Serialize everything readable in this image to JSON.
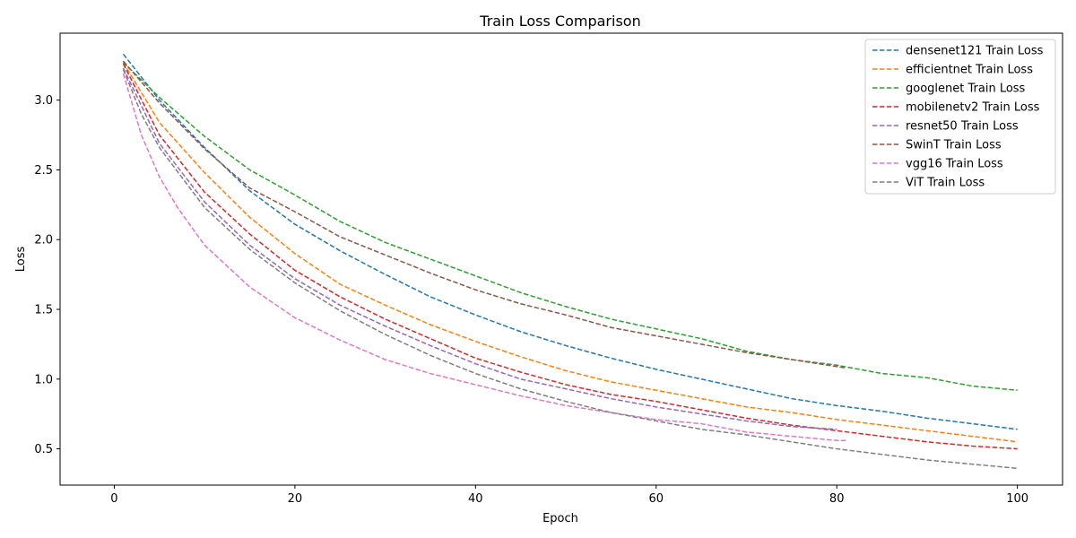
{
  "chart_data": {
    "type": "line",
    "title": "Train Loss Comparison",
    "xlabel": "Epoch",
    "ylabel": "Loss",
    "xlim": [
      -6,
      105
    ],
    "ylim": [
      0.24,
      3.48
    ],
    "xticks": [
      0,
      20,
      40,
      60,
      80,
      100
    ],
    "yticks": [
      0.5,
      1.0,
      1.5,
      2.0,
      2.5,
      3.0
    ],
    "grid": false,
    "legend": "top-right",
    "line_style": "dashed",
    "series": [
      {
        "name": "densenet121 Train Loss",
        "color": "#1f77b4",
        "x": [
          1,
          5,
          10,
          15,
          20,
          25,
          30,
          35,
          40,
          45,
          50,
          55,
          60,
          65,
          70,
          75,
          80,
          85,
          90,
          95,
          100
        ],
        "values": [
          3.33,
          3.0,
          2.66,
          2.35,
          2.11,
          1.92,
          1.75,
          1.59,
          1.46,
          1.34,
          1.24,
          1.15,
          1.07,
          1.0,
          0.93,
          0.86,
          0.81,
          0.77,
          0.72,
          0.68,
          0.64
        ]
      },
      {
        "name": "efficientnet Train Loss",
        "color": "#ff7f0e",
        "x": [
          1,
          5,
          10,
          15,
          20,
          25,
          30,
          35,
          40,
          45,
          50,
          55,
          60,
          65,
          70,
          75,
          80,
          85,
          90,
          95,
          100
        ],
        "values": [
          3.27,
          2.84,
          2.48,
          2.16,
          1.9,
          1.68,
          1.53,
          1.39,
          1.27,
          1.16,
          1.06,
          0.98,
          0.92,
          0.86,
          0.8,
          0.76,
          0.71,
          0.67,
          0.63,
          0.59,
          0.55
        ]
      },
      {
        "name": "googlenet Train Loss",
        "color": "#2ca02c",
        "x": [
          1,
          5,
          10,
          15,
          20,
          25,
          30,
          35,
          40,
          45,
          50,
          55,
          60,
          65,
          70,
          75,
          80,
          85,
          90,
          95,
          100
        ],
        "values": [
          3.27,
          3.02,
          2.74,
          2.5,
          2.32,
          2.13,
          1.98,
          1.86,
          1.74,
          1.62,
          1.52,
          1.43,
          1.36,
          1.29,
          1.2,
          1.14,
          1.1,
          1.04,
          1.01,
          0.95,
          0.92
        ]
      },
      {
        "name": "mobilenetv2 Train Loss",
        "color": "#d62728",
        "x": [
          1,
          5,
          10,
          15,
          20,
          25,
          30,
          35,
          40,
          45,
          50,
          55,
          60,
          65,
          70,
          75,
          80,
          85,
          90,
          95,
          100
        ],
        "values": [
          3.26,
          2.75,
          2.34,
          2.04,
          1.78,
          1.59,
          1.43,
          1.29,
          1.15,
          1.05,
          0.96,
          0.89,
          0.84,
          0.78,
          0.72,
          0.67,
          0.63,
          0.59,
          0.55,
          0.52,
          0.5
        ]
      },
      {
        "name": "resnet50 Train Loss",
        "color": "#9467bd",
        "x": [
          1,
          5,
          10,
          15,
          20,
          25,
          30,
          35,
          40,
          45,
          50,
          55,
          60,
          65,
          70,
          75,
          80
        ],
        "values": [
          3.23,
          2.69,
          2.27,
          1.96,
          1.72,
          1.53,
          1.38,
          1.24,
          1.11,
          1.0,
          0.93,
          0.86,
          0.8,
          0.75,
          0.7,
          0.66,
          0.64
        ]
      },
      {
        "name": "SwinT Train Loss",
        "color": "#8c564b",
        "x": [
          1,
          5,
          10,
          15,
          20,
          25,
          30,
          35,
          40,
          45,
          50,
          55,
          60,
          65,
          70,
          75,
          80,
          81
        ],
        "values": [
          3.28,
          2.98,
          2.65,
          2.37,
          2.2,
          2.02,
          1.89,
          1.76,
          1.64,
          1.54,
          1.46,
          1.37,
          1.31,
          1.25,
          1.19,
          1.14,
          1.09,
          1.08
        ]
      },
      {
        "name": "vgg16 Train Loss",
        "color": "#e377c2",
        "x": [
          1,
          3,
          5,
          7,
          10,
          15,
          20,
          25,
          30,
          35,
          40,
          45,
          50,
          55,
          60,
          65,
          70,
          75,
          80,
          81
        ],
        "values": [
          3.19,
          2.75,
          2.45,
          2.23,
          1.96,
          1.66,
          1.44,
          1.28,
          1.14,
          1.04,
          0.96,
          0.88,
          0.81,
          0.76,
          0.71,
          0.68,
          0.62,
          0.59,
          0.56,
          0.56
        ]
      },
      {
        "name": "ViT Train Loss",
        "color": "#7f7f7f",
        "x": [
          1,
          3,
          5,
          10,
          15,
          20,
          25,
          30,
          35,
          40,
          45,
          50,
          55,
          60,
          65,
          70,
          75,
          80,
          85,
          90,
          95,
          100
        ],
        "values": [
          3.22,
          2.9,
          2.66,
          2.23,
          1.93,
          1.69,
          1.49,
          1.32,
          1.17,
          1.04,
          0.93,
          0.84,
          0.76,
          0.7,
          0.64,
          0.6,
          0.55,
          0.5,
          0.46,
          0.42,
          0.39,
          0.36
        ]
      }
    ]
  }
}
